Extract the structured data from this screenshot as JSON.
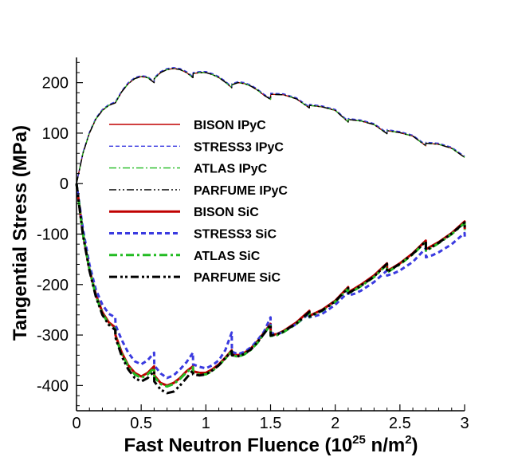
{
  "chart_data": {
    "type": "line",
    "xlabel": "Fast Neutron Fluence (10",
    "xlabel_sup": "25",
    "xlabel_unit": " n/m",
    "xlabel_sup2": "2",
    "xlabel_end": ")",
    "ylabel": "Tangential Stress (MPa)",
    "xlim": [
      0,
      3
    ],
    "ylim": [
      -450,
      250
    ],
    "xticks": [
      0,
      0.5,
      1,
      1.5,
      2,
      2.5,
      3
    ],
    "xtick_labels": [
      "0",
      "0.5",
      "1",
      "1.5",
      "2",
      "2.5",
      "3"
    ],
    "yticks": [
      -400,
      -300,
      -200,
      -100,
      0,
      100,
      200
    ],
    "ytick_labels": [
      "-400",
      "-300",
      "-200",
      "-100",
      "0",
      "100",
      "200"
    ],
    "grid": false,
    "legend_position": "center",
    "series": [
      {
        "name": "BISON IPyC",
        "color": "#c00000",
        "style": "solid",
        "width": 1.4,
        "x": [
          0,
          0.05,
          0.1,
          0.15,
          0.2,
          0.25,
          0.3,
          0.35,
          0.4,
          0.45,
          0.5,
          0.55,
          0.6,
          0.601,
          0.65,
          0.7,
          0.75,
          0.8,
          0.85,
          0.9,
          0.901,
          0.95,
          1.0,
          1.05,
          1.1,
          1.15,
          1.2,
          1.201,
          1.25,
          1.3,
          1.35,
          1.4,
          1.45,
          1.5,
          1.501,
          1.6,
          1.7,
          1.8,
          1.801,
          1.9,
          2.0,
          2.1,
          2.101,
          2.2,
          2.3,
          2.4,
          2.401,
          2.5,
          2.6,
          2.7,
          2.701,
          2.8,
          2.9,
          3.0
        ],
        "y": [
          0,
          60,
          100,
          128,
          145,
          155,
          160,
          182,
          198,
          208,
          212,
          210,
          200,
          208,
          220,
          226,
          228,
          226,
          220,
          210,
          218,
          220,
          220,
          216,
          210,
          201,
          190,
          196,
          200,
          198,
          193,
          185,
          175,
          167,
          177,
          176,
          168,
          150,
          155,
          152,
          145,
          122,
          127,
          124,
          117,
          99,
          105,
          101,
          94,
          75,
          80,
          78,
          70,
          52
        ]
      },
      {
        "name": "STRESS3 IPyC",
        "color": "#3a3ae0",
        "style": "dashed",
        "width": 1.4,
        "x": [
          0,
          0.05,
          0.1,
          0.15,
          0.2,
          0.25,
          0.3,
          0.35,
          0.4,
          0.45,
          0.5,
          0.55,
          0.6,
          0.601,
          0.65,
          0.7,
          0.75,
          0.8,
          0.85,
          0.9,
          0.901,
          0.95,
          1.0,
          1.05,
          1.1,
          1.15,
          1.2,
          1.201,
          1.25,
          1.3,
          1.35,
          1.4,
          1.45,
          1.5,
          1.501,
          1.6,
          1.7,
          1.8,
          1.801,
          1.9,
          2.0,
          2.1,
          2.101,
          2.2,
          2.3,
          2.4,
          2.401,
          2.5,
          2.6,
          2.7,
          2.701,
          2.8,
          2.9,
          3.0
        ],
        "y": [
          0,
          62,
          102,
          130,
          147,
          157,
          162,
          184,
          200,
          210,
          214,
          212,
          202,
          210,
          222,
          228,
          230,
          228,
          222,
          212,
          220,
          222,
          222,
          218,
          212,
          203,
          192,
          198,
          202,
          200,
          195,
          187,
          177,
          169,
          179,
          178,
          170,
          152,
          157,
          154,
          147,
          124,
          129,
          126,
          119,
          101,
          107,
          103,
          96,
          77,
          82,
          80,
          72,
          54
        ]
      },
      {
        "name": "ATLAS IPyC",
        "color": "#22bb22",
        "style": "dashdot",
        "width": 1.4,
        "x": [
          0,
          0.05,
          0.1,
          0.15,
          0.2,
          0.25,
          0.3,
          0.35,
          0.4,
          0.45,
          0.5,
          0.55,
          0.6,
          0.601,
          0.65,
          0.7,
          0.75,
          0.8,
          0.85,
          0.9,
          0.901,
          0.95,
          1.0,
          1.05,
          1.1,
          1.15,
          1.2,
          1.201,
          1.25,
          1.3,
          1.35,
          1.4,
          1.45,
          1.5,
          1.501,
          1.6,
          1.7,
          1.8,
          1.801,
          1.9,
          2.0,
          2.1,
          2.101,
          2.2,
          2.3,
          2.4,
          2.401,
          2.5,
          2.6,
          2.7,
          2.701,
          2.8,
          2.9,
          3.0
        ],
        "y": [
          0,
          60,
          100,
          128,
          145,
          155,
          160,
          182,
          198,
          208,
          212,
          210,
          200,
          208,
          220,
          226,
          228,
          226,
          220,
          210,
          218,
          220,
          220,
          216,
          210,
          201,
          190,
          196,
          200,
          198,
          193,
          185,
          175,
          167,
          177,
          176,
          168,
          150,
          155,
          152,
          145,
          122,
          127,
          124,
          117,
          99,
          105,
          101,
          94,
          75,
          80,
          78,
          70,
          52
        ]
      },
      {
        "name": "PARFUME IPyC",
        "color": "#000000",
        "style": "dashdotdot",
        "width": 1.4,
        "x": [
          0,
          0.05,
          0.1,
          0.15,
          0.2,
          0.25,
          0.3,
          0.35,
          0.4,
          0.45,
          0.5,
          0.55,
          0.6,
          0.601,
          0.65,
          0.7,
          0.75,
          0.8,
          0.85,
          0.9,
          0.901,
          0.95,
          1.0,
          1.05,
          1.1,
          1.15,
          1.2,
          1.201,
          1.25,
          1.3,
          1.35,
          1.4,
          1.45,
          1.5,
          1.501,
          1.6,
          1.7,
          1.8,
          1.801,
          1.9,
          2.0,
          2.1,
          2.101,
          2.2,
          2.3,
          2.4,
          2.401,
          2.5,
          2.6,
          2.7,
          2.701,
          2.8,
          2.9,
          3.0
        ],
        "y": [
          0,
          60,
          100,
          128,
          145,
          155,
          160,
          182,
          198,
          208,
          212,
          210,
          200,
          208,
          220,
          226,
          228,
          226,
          220,
          210,
          218,
          220,
          220,
          216,
          210,
          201,
          190,
          196,
          200,
          198,
          193,
          185,
          175,
          167,
          177,
          176,
          168,
          150,
          155,
          152,
          145,
          122,
          127,
          124,
          117,
          99,
          105,
          101,
          94,
          75,
          80,
          78,
          70,
          52
        ]
      },
      {
        "name": "BISON SiC",
        "color": "#c00000",
        "style": "solid",
        "width": 3,
        "x": [
          0,
          0.05,
          0.1,
          0.15,
          0.2,
          0.25,
          0.3,
          0.301,
          0.35,
          0.4,
          0.45,
          0.5,
          0.55,
          0.6,
          0.601,
          0.65,
          0.7,
          0.75,
          0.8,
          0.85,
          0.9,
          0.901,
          0.95,
          1.0,
          1.05,
          1.1,
          1.15,
          1.2,
          1.201,
          1.25,
          1.3,
          1.35,
          1.4,
          1.45,
          1.5,
          1.501,
          1.55,
          1.6,
          1.7,
          1.8,
          1.801,
          1.85,
          1.9,
          2.0,
          2.1,
          2.101,
          2.15,
          2.2,
          2.3,
          2.4,
          2.401,
          2.45,
          2.5,
          2.6,
          2.7,
          2.701,
          2.75,
          2.8,
          2.9,
          3.0,
          3.001
        ],
        "y": [
          0,
          -100,
          -170,
          -220,
          -255,
          -275,
          -285,
          -300,
          -335,
          -360,
          -375,
          -382,
          -375,
          -362,
          -380,
          -395,
          -400,
          -395,
          -385,
          -372,
          -362,
          -372,
          -375,
          -375,
          -368,
          -358,
          -345,
          -330,
          -338,
          -340,
          -335,
          -326,
          -312,
          -295,
          -278,
          -300,
          -298,
          -292,
          -275,
          -252,
          -262,
          -256,
          -250,
          -232,
          -205,
          -215,
          -208,
          -200,
          -182,
          -158,
          -173,
          -166,
          -158,
          -138,
          -113,
          -130,
          -123,
          -116,
          -98,
          -75,
          -90
        ]
      },
      {
        "name": "STRESS3 SiC",
        "color": "#3a3ae0",
        "style": "dashed",
        "width": 3,
        "x": [
          0,
          0.05,
          0.1,
          0.15,
          0.2,
          0.25,
          0.3,
          0.301,
          0.35,
          0.4,
          0.45,
          0.5,
          0.55,
          0.6,
          0.601,
          0.65,
          0.7,
          0.75,
          0.8,
          0.85,
          0.9,
          0.901,
          0.95,
          1.0,
          1.05,
          1.1,
          1.15,
          1.2,
          1.201,
          1.25,
          1.3,
          1.35,
          1.4,
          1.45,
          1.5,
          1.501,
          1.55,
          1.6,
          1.7,
          1.8,
          1.801,
          1.85,
          1.9,
          2.0,
          2.1,
          2.101,
          2.15,
          2.2,
          2.3,
          2.4,
          2.401,
          2.45,
          2.5,
          2.6,
          2.7,
          2.701,
          2.75,
          2.8,
          2.9,
          3.0,
          3.001
        ],
        "y": [
          0,
          -90,
          -160,
          -210,
          -240,
          -258,
          -265,
          -280,
          -310,
          -335,
          -352,
          -358,
          -350,
          -335,
          -360,
          -376,
          -385,
          -380,
          -368,
          -354,
          -335,
          -358,
          -363,
          -366,
          -360,
          -350,
          -330,
          -295,
          -333,
          -338,
          -333,
          -324,
          -310,
          -293,
          -265,
          -296,
          -298,
          -294,
          -278,
          -257,
          -265,
          -262,
          -258,
          -240,
          -215,
          -222,
          -218,
          -212,
          -195,
          -172,
          -182,
          -178,
          -172,
          -155,
          -128,
          -146,
          -142,
          -136,
          -120,
          -98,
          -105
        ]
      },
      {
        "name": "ATLAS SiC",
        "color": "#22bb22",
        "style": "dashdot",
        "width": 3,
        "x": [
          0,
          0.05,
          0.1,
          0.15,
          0.2,
          0.25,
          0.3,
          0.301,
          0.35,
          0.4,
          0.45,
          0.5,
          0.55,
          0.6,
          0.601,
          0.65,
          0.7,
          0.75,
          0.8,
          0.85,
          0.9,
          0.901,
          0.95,
          1.0,
          1.05,
          1.1,
          1.15,
          1.2,
          1.201,
          1.25,
          1.3,
          1.35,
          1.4,
          1.45,
          1.5,
          1.501,
          1.55,
          1.6,
          1.7,
          1.8,
          1.801,
          1.85,
          1.9,
          2.0,
          2.1,
          2.101,
          2.15,
          2.2,
          2.3,
          2.4,
          2.401,
          2.45,
          2.5,
          2.6,
          2.7,
          2.701,
          2.75,
          2.8,
          2.9,
          3.0,
          3.001
        ],
        "y": [
          0,
          -100,
          -170,
          -222,
          -258,
          -278,
          -288,
          -303,
          -338,
          -362,
          -378,
          -385,
          -378,
          -365,
          -383,
          -397,
          -402,
          -397,
          -387,
          -374,
          -364,
          -375,
          -378,
          -378,
          -371,
          -360,
          -347,
          -332,
          -340,
          -343,
          -338,
          -329,
          -315,
          -297,
          -280,
          -302,
          -300,
          -294,
          -278,
          -255,
          -264,
          -258,
          -252,
          -234,
          -208,
          -218,
          -211,
          -203,
          -185,
          -160,
          -176,
          -168,
          -160,
          -140,
          -115,
          -133,
          -126,
          -118,
          -100,
          -78,
          -92
        ]
      },
      {
        "name": "PARFUME SiC",
        "color": "#000000",
        "style": "dashdotdot",
        "width": 3,
        "x": [
          0,
          0.05,
          0.1,
          0.15,
          0.2,
          0.25,
          0.3,
          0.301,
          0.35,
          0.4,
          0.45,
          0.5,
          0.55,
          0.6,
          0.601,
          0.65,
          0.7,
          0.75,
          0.8,
          0.85,
          0.9,
          0.901,
          0.95,
          1.0,
          1.05,
          1.1,
          1.15,
          1.2,
          1.201,
          1.25,
          1.3,
          1.35,
          1.4,
          1.45,
          1.5,
          1.501,
          1.55,
          1.6,
          1.7,
          1.8,
          1.801,
          1.85,
          1.9,
          2.0,
          2.1,
          2.101,
          2.15,
          2.2,
          2.3,
          2.4,
          2.401,
          2.45,
          2.5,
          2.6,
          2.7,
          2.701,
          2.75,
          2.8,
          2.9,
          3.0,
          3.001
        ],
        "y": [
          0,
          -102,
          -172,
          -224,
          -260,
          -280,
          -290,
          -305,
          -342,
          -368,
          -385,
          -392,
          -385,
          -372,
          -392,
          -408,
          -415,
          -412,
          -400,
          -385,
          -370,
          -378,
          -380,
          -378,
          -370,
          -360,
          -346,
          -332,
          -340,
          -342,
          -337,
          -328,
          -314,
          -297,
          -280,
          -301,
          -299,
          -293,
          -277,
          -254,
          -263,
          -257,
          -251,
          -233,
          -207,
          -217,
          -210,
          -202,
          -184,
          -159,
          -175,
          -167,
          -159,
          -139,
          -114,
          -132,
          -125,
          -117,
          -99,
          -77,
          -91
        ]
      }
    ]
  }
}
